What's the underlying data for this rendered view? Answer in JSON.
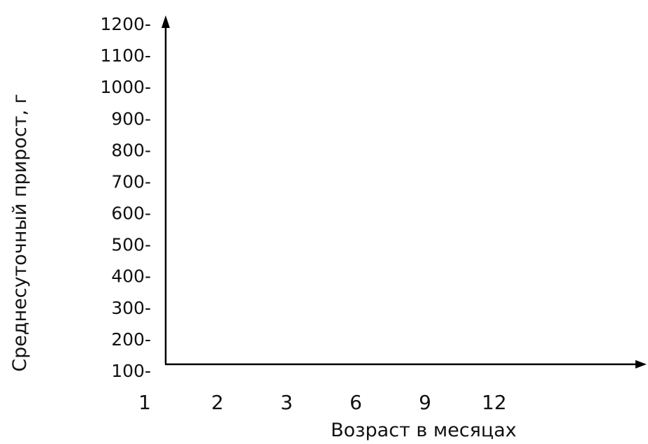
{
  "chart_data": {
    "type": "line",
    "title": "",
    "xlabel": "Возраст в месяцах",
    "ylabel": "Среднесуточный прирост, г",
    "categories": [
      "1",
      "2",
      "3",
      "6",
      "9",
      "12"
    ],
    "y_ticks": [
      1200,
      1100,
      1000,
      900,
      800,
      700,
      600,
      500,
      400,
      300,
      200,
      100
    ],
    "y_tick_suffix": "-",
    "ylim": [
      100,
      1200
    ],
    "series": [],
    "grid": false,
    "axis_color": "#000000"
  }
}
